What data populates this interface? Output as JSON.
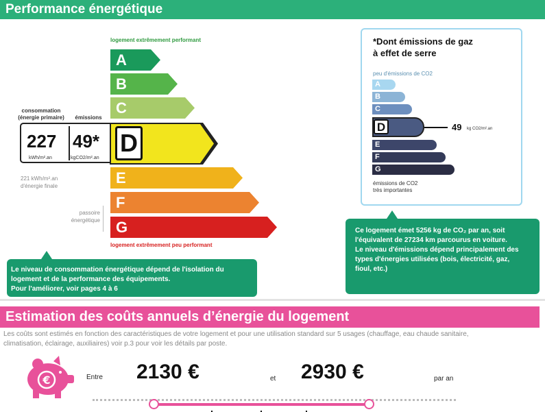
{
  "header_energy": {
    "title": "Performance énergétique"
  },
  "energy_scale": {
    "top_label": "logement extrêmement performant",
    "bottom_label": "logement extrêmement peu performant",
    "classes": [
      {
        "letter": "A",
        "color": "#1a9a5b"
      },
      {
        "letter": "B",
        "color": "#55b44a"
      },
      {
        "letter": "C",
        "color": "#a7cb6a"
      },
      {
        "letter": "D",
        "color": "#f2e51d"
      },
      {
        "letter": "E",
        "color": "#f0b21b"
      },
      {
        "letter": "F",
        "color": "#ec8330"
      },
      {
        "letter": "G",
        "color": "#d7201f"
      }
    ],
    "current_class": "D",
    "consumption_label": "consommation\n(énergie primaire)",
    "emissions_label": "émissions",
    "consumption_value": "227",
    "consumption_unit": "kWh/m².an",
    "emissions_value": "49*",
    "emissions_unit": "kgCO2/m².an",
    "final_energy_note": "221 kWh/m².an\nd'énergie finale",
    "passoire_label": "passoire\nénergétique"
  },
  "co2_panel": {
    "title_line1": "*Dont émissions de gaz",
    "title_line2": "à effet de serre",
    "top_label": "peu d'émissions de CO2",
    "bottom_label_line1": "émissions de CO2",
    "bottom_label_line2": "très importantes",
    "classes": [
      {
        "letter": "A",
        "color": "#a8d7f0"
      },
      {
        "letter": "B",
        "color": "#8cb4d6"
      },
      {
        "letter": "C",
        "color": "#6d8fbe"
      },
      {
        "letter": "D",
        "color": "#4a5a82"
      },
      {
        "letter": "E",
        "color": "#3d466a"
      },
      {
        "letter": "F",
        "color": "#333a58"
      },
      {
        "letter": "G",
        "color": "#2b2d44"
      }
    ],
    "current_class": "D",
    "value": "49",
    "unit": "kg CO2/m².an"
  },
  "callouts": {
    "consumption": {
      "line1": "Le niveau de consommation énergétique dépend de l'isolation du",
      "line2": "logement et de la performance des équipements.",
      "line3": "Pour l'améliorer, voir pages 4 à 6"
    },
    "emissions": {
      "line1": "Ce logement émet 5256 kg de CO₂ par an, soit",
      "line2": "l'équivalent de 27234  km parcourus en voiture.",
      "line3": "Le niveau d'émissions dépend principalement des",
      "line4": "types d'énergies utilisées (bois, électricité, gaz,",
      "line5": "fioul, etc.)"
    }
  },
  "header_costs": {
    "title": "Estimation des coûts annuels d’énergie du logement"
  },
  "costs": {
    "description_line1": "Les coûts sont estimés en fonction des caractéristiques de votre logement et pour une utilisation standard sur 5 usages (chauffage, eau chaude sanitaire,",
    "description_line2": "climatisation, éclairage, auxiliaires) voir p.3 pour voir les détails par poste.",
    "between_label": "Entre",
    "min_value": "2130 €",
    "and_label": "et",
    "max_value": "2930 €",
    "per_year_label": "par an",
    "icon": "piggy-bank-euro-icon",
    "accent_color": "#e8519a"
  }
}
